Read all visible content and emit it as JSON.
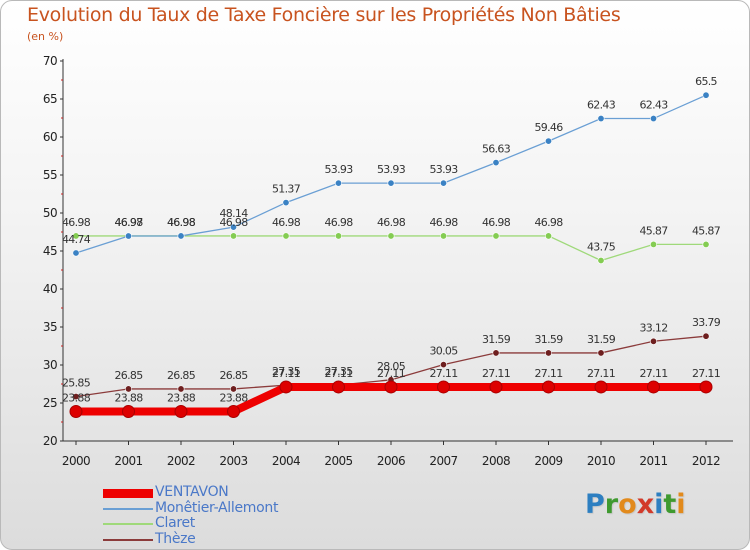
{
  "title": "Evolution du Taux de Taxe Foncière sur les Propriétés Non Bâties",
  "unit": "(en %)",
  "logo": {
    "text": "Proxiti",
    "letters": [
      {
        "ch": "P",
        "color": "#2d7fc1"
      },
      {
        "ch": "r",
        "color": "#3f9a2f"
      },
      {
        "ch": "o",
        "color": "#e28a1c"
      },
      {
        "ch": "x",
        "color": "#d23a2a"
      },
      {
        "ch": "i",
        "color": "#2d7fc1"
      },
      {
        "ch": "t",
        "color": "#3f9a2f"
      },
      {
        "ch": "i",
        "color": "#e28a1c"
      }
    ]
  },
  "chart_data": {
    "type": "line",
    "title": "Evolution du Taux de Taxe Foncière sur les Propriétés Non Bâties",
    "ylabel": "(en %)",
    "x": [
      "2000",
      "2001",
      "2002",
      "2003",
      "2004",
      "2005",
      "2006",
      "2007",
      "2008",
      "2009",
      "2010",
      "2011",
      "2012"
    ],
    "ylim": [
      20,
      70
    ],
    "yticks": [
      "20",
      "25",
      "30",
      "35",
      "40",
      "45",
      "50",
      "55",
      "60",
      "65",
      "70"
    ],
    "grid": false,
    "legend": "bottom-left",
    "series": [
      {
        "name": "VENTAVON",
        "color": "#ee0000",
        "values": [
          23.88,
          23.88,
          23.88,
          23.88,
          27.11,
          27.11,
          27.11,
          27.11,
          27.11,
          27.11,
          27.11,
          27.11,
          27.11
        ],
        "labels": [
          "23.88",
          "23.88",
          "23.88",
          "23.88",
          "27.11",
          "27.11",
          "27.11",
          "27.11",
          "27.11",
          "27.11",
          "27.11",
          "27.11",
          "27.11"
        ]
      },
      {
        "name": "Monêtier-Allemont",
        "color": "#6a9fd4",
        "marker": "#3b82c4",
        "values": [
          44.74,
          46.97,
          46.98,
          48.14,
          51.37,
          53.93,
          53.93,
          53.93,
          56.63,
          59.46,
          62.43,
          62.43,
          65.5
        ],
        "labels": [
          "44.74",
          "46.97",
          "46.98",
          "48.14",
          "51.37",
          "53.93",
          "53.93",
          "53.93",
          "56.63",
          "59.46",
          "62.43",
          "62.43",
          "65.5"
        ]
      },
      {
        "name": "Claret",
        "color": "#9fd97a",
        "marker": "#84cc52",
        "values": [
          46.98,
          46.98,
          46.98,
          46.98,
          46.98,
          46.98,
          46.98,
          46.98,
          46.98,
          46.98,
          43.75,
          45.87,
          45.87
        ],
        "labels": [
          "46.98",
          "46.98",
          "46.98",
          "46.98",
          "46.98",
          "46.98",
          "46.98",
          "46.98",
          "46.98",
          "46.98",
          "43.75",
          "45.87",
          "45.87"
        ]
      },
      {
        "name": "Thèze",
        "color": "#8b3b3b",
        "marker": "#6e1f1f",
        "values": [
          25.85,
          26.85,
          26.85,
          26.85,
          27.35,
          27.35,
          28.05,
          30.05,
          31.59,
          31.59,
          31.59,
          33.12,
          33.79
        ],
        "labels": [
          "25.85",
          "26.85",
          "26.85",
          "26.85",
          "27.35",
          "27.35",
          "28.05",
          "30.05",
          "31.59",
          "31.59",
          "31.59",
          "33.12",
          "33.79"
        ]
      }
    ]
  }
}
